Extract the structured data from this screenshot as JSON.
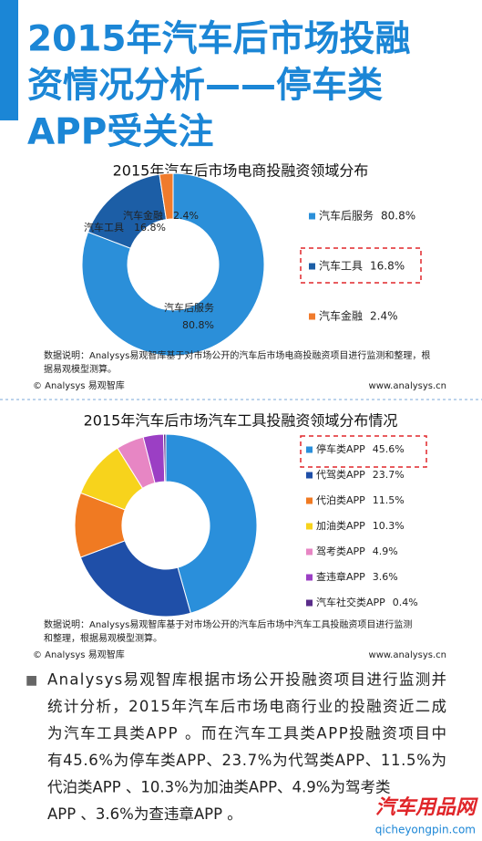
{
  "header": {
    "title_lines": [
      "2015年汽车后市场投融",
      "资情况分析——停车类",
      "APP受关注"
    ]
  },
  "chart_data": [
    {
      "type": "pie",
      "donut": true,
      "slice_labels": true,
      "title": "2015年汽车后市场电商投融资领域分布",
      "categories": [
        "汽车后服务",
        "汽车工具",
        "汽车金融"
      ],
      "values": [
        80.8,
        16.8,
        2.4
      ],
      "value_labels": [
        "80.8%",
        "16.8%",
        "2.4%"
      ],
      "colors": [
        "#2b8fd9",
        "#1c5ea6",
        "#f07b2c"
      ],
      "note_lines": [
        "数据说明：Analysys易观智库基于对市场公开的汽车后市场电商投融资项目进行监测和整理，根",
        "据易观模型测算。"
      ],
      "source": "© Analysys 易观智库",
      "website": "www.analysys.cn"
    },
    {
      "type": "pie",
      "donut": true,
      "slice_labels": false,
      "title": "2015年汽车后市场汽车工具投融资领域分布情况",
      "categories": [
        "停车类APP",
        "代驾类APP",
        "代泊类APP",
        "加油类APP",
        "驾考类APP",
        "查违章APP",
        "汽车社交类APP"
      ],
      "values": [
        45.6,
        23.7,
        11.5,
        10.3,
        4.9,
        3.6,
        0.4
      ],
      "value_labels": [
        "45.6%",
        "23.7%",
        "11.5%",
        "10.3%",
        "4.9%",
        "3.6%",
        "0.4%"
      ],
      "colors": [
        "#2a8fdb",
        "#1f4fa8",
        "#f07a22",
        "#f7d31c",
        "#e786c4",
        "#9b3fc4",
        "#5a2c8a"
      ],
      "note_lines": [
        "数据说明：Analysys易观智库基于对市场公开的汽车后市场中汽车工具投融资项目进行监测",
        "和整理，根据易观模型测算。"
      ],
      "source": "© Analysys 易观智库",
      "website": "www.analysys.cn"
    }
  ],
  "body": {
    "bullet": "■",
    "lines": [
      "Analysys易观智库根据市场公开投融资项目进行监测并",
      "统计分析，2015年汽车后市场电商行业的投融资近二成",
      "为汽车工具类APP 。而在汽车工具类APP投融资项目中",
      "有45.6%为停车类APP、23.7%为代驾类APP、11.5%为",
      "代泊类APP 、10.3%为加油类APP、4.9%为驾考类",
      "APP 、3.6%为查违章APP 。"
    ]
  },
  "watermark": {
    "name": "汽车用品网",
    "url": "qicheyongpin.com"
  }
}
